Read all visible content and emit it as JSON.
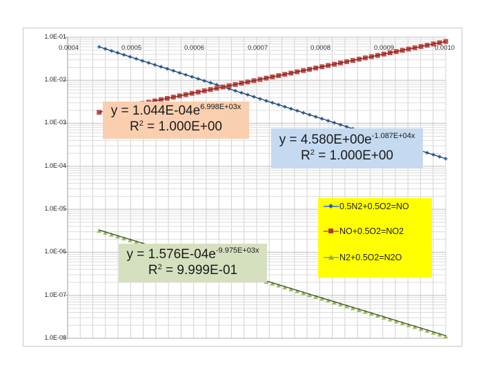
{
  "chart_data": {
    "type": "scatter",
    "title": "",
    "xlabel": "",
    "ylabel": "",
    "x_axis": {
      "min": 0.0004,
      "max": 0.001,
      "position": "top",
      "tick_labels": [
        "0.0004",
        "0.0005",
        "0.0006",
        "0.0007",
        "0.0008",
        "0.0009",
        "0.0010"
      ]
    },
    "y_axis": {
      "scale": "log",
      "min": 1e-08,
      "max": 0.1,
      "tick_labels": [
        "1.0E-01",
        "1.0E-02",
        "1.0E-03",
        "1.0E-04",
        "1.0E-05",
        "1.0E-06",
        "1.0E-07",
        "1.0E-08"
      ]
    },
    "grid": true,
    "legend_position": "inside-right",
    "series": [
      {
        "name": "0.5N2+0.5O2=NO",
        "color": "#2e5f96",
        "marker": "diamond",
        "x_range": [
          0.00045,
          0.001
        ],
        "y_start": 0.06,
        "y_end": 0.00015,
        "trendline": {
          "type": "exponential",
          "equation": "y = 4.580E+00e^(-1.087E+04x)",
          "r2": "1.000E+00"
        }
      },
      {
        "name": "NO+0.5O2=NO2",
        "color": "#b03a37",
        "marker": "square",
        "x_range": [
          0.00045,
          0.001
        ],
        "y_start": 0.0018,
        "y_end": 0.08,
        "trendline": {
          "type": "exponential",
          "equation": "y = 1.044E-04e^(6.998E+03x)",
          "r2": "1.000E+00"
        }
      },
      {
        "name": "N2+0.5O2=N2O",
        "color": "#8db04a",
        "marker": "triangle",
        "x_range": [
          0.00045,
          0.001
        ],
        "y_start": 3.3e-06,
        "y_end": 1.15e-08,
        "trendline": {
          "type": "exponential",
          "equation": "y = 1.576E-04e^(-9.975E+03x)",
          "r2": "9.999E-01"
        }
      }
    ]
  },
  "axes": {
    "y_ticks": [
      "1.0E-01",
      "1.0E-02",
      "1.0E-03",
      "1.0E-04",
      "1.0E-05",
      "1.0E-06",
      "1.0E-07",
      "1.0E-08"
    ],
    "x_ticks": [
      "0.0004",
      "0.0005",
      "0.0006",
      "0.0007",
      "0.0008",
      "0.0009",
      "0.0010"
    ]
  },
  "annotations": {
    "red": {
      "prefix": "y = 1.044E-04e",
      "exp": "6.998E+03x",
      "r2_label": "R",
      "r2_sup": "2",
      "r2_value": " = 1.000E+00",
      "bg": "#f9cfb0"
    },
    "blue": {
      "prefix": "y = 4.580E+00e",
      "exp": "-1.087E+04x",
      "r2_label": "R",
      "r2_sup": "2",
      "r2_value": " = 1.000E+00",
      "bg": "#c5d9f0"
    },
    "green": {
      "prefix": "y = 1.576E-04e",
      "exp": "-9.975E+03x",
      "r2_label": "R",
      "r2_sup": "2",
      "r2_value": " = 9.999E-01",
      "bg": "#d5e0bf"
    }
  },
  "legend": {
    "bg": "#ffff00",
    "items": [
      {
        "label": "0.5N2+0.5O2=NO",
        "color": "#2e5f96",
        "marker": "diamond"
      },
      {
        "label": "NO+0.5O2=NO2",
        "color": "#b03a37",
        "marker": "square"
      },
      {
        "label": "N2+0.5O2=N2O",
        "color": "#8db04a",
        "marker": "triangle"
      }
    ]
  }
}
